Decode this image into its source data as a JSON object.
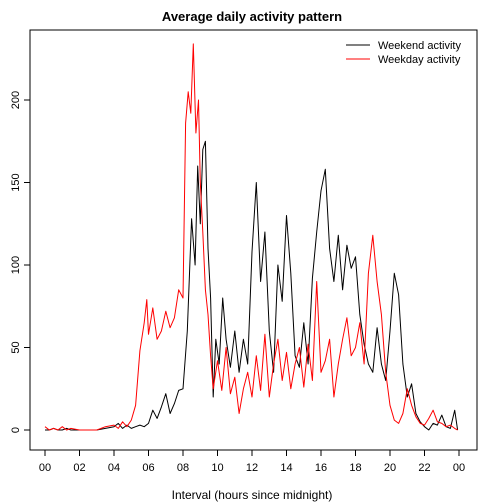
{
  "chart_data": {
    "type": "line",
    "title": "Average daily activity pattern",
    "xlabel": "Interval (hours since midnight)",
    "ylabel": "",
    "x_ticks": [
      "00",
      "02",
      "04",
      "06",
      "08",
      "10",
      "12",
      "14",
      "16",
      "18",
      "20",
      "22",
      "00"
    ],
    "y_ticks": [
      "0",
      "50",
      "100",
      "150",
      "200"
    ],
    "xlim": [
      0,
      24
    ],
    "ylim": [
      0,
      235
    ],
    "grid": false,
    "legend_position": "top-right",
    "series": [
      {
        "name": "Weekend activity",
        "color": "#000000",
        "points": [
          [
            0.0,
            0
          ],
          [
            0.25,
            0
          ],
          [
            0.5,
            1
          ],
          [
            0.75,
            0
          ],
          [
            1.0,
            0
          ],
          [
            1.25,
            1
          ],
          [
            1.5,
            0
          ],
          [
            2.0,
            0
          ],
          [
            2.5,
            0
          ],
          [
            3.0,
            0
          ],
          [
            3.5,
            1
          ],
          [
            4.0,
            2
          ],
          [
            4.25,
            4
          ],
          [
            4.5,
            1
          ],
          [
            4.75,
            3
          ],
          [
            5.0,
            1
          ],
          [
            5.25,
            2
          ],
          [
            5.5,
            3
          ],
          [
            5.75,
            2
          ],
          [
            6.0,
            4
          ],
          [
            6.25,
            12
          ],
          [
            6.5,
            7
          ],
          [
            6.75,
            14
          ],
          [
            7.0,
            22
          ],
          [
            7.25,
            10
          ],
          [
            7.5,
            16
          ],
          [
            7.75,
            24
          ],
          [
            8.0,
            25
          ],
          [
            8.25,
            60
          ],
          [
            8.5,
            128
          ],
          [
            8.7,
            100
          ],
          [
            8.85,
            160
          ],
          [
            9.0,
            125
          ],
          [
            9.15,
            170
          ],
          [
            9.3,
            175
          ],
          [
            9.45,
            110
          ],
          [
            9.6,
            80
          ],
          [
            9.75,
            20
          ],
          [
            9.9,
            55
          ],
          [
            10.1,
            40
          ],
          [
            10.3,
            80
          ],
          [
            10.5,
            55
          ],
          [
            10.75,
            38
          ],
          [
            11.0,
            60
          ],
          [
            11.25,
            35
          ],
          [
            11.5,
            55
          ],
          [
            11.75,
            40
          ],
          [
            12.0,
            108
          ],
          [
            12.25,
            150
          ],
          [
            12.5,
            90
          ],
          [
            12.75,
            120
          ],
          [
            13.0,
            60
          ],
          [
            13.25,
            35
          ],
          [
            13.5,
            100
          ],
          [
            13.75,
            78
          ],
          [
            14.0,
            130
          ],
          [
            14.25,
            95
          ],
          [
            14.5,
            45
          ],
          [
            14.75,
            38
          ],
          [
            15.0,
            65
          ],
          [
            15.25,
            40
          ],
          [
            15.5,
            92
          ],
          [
            15.75,
            120
          ],
          [
            16.0,
            145
          ],
          [
            16.25,
            158
          ],
          [
            16.5,
            110
          ],
          [
            16.75,
            90
          ],
          [
            17.0,
            118
          ],
          [
            17.25,
            85
          ],
          [
            17.5,
            112
          ],
          [
            17.75,
            98
          ],
          [
            18.0,
            105
          ],
          [
            18.25,
            70
          ],
          [
            18.5,
            52
          ],
          [
            18.75,
            40
          ],
          [
            19.0,
            35
          ],
          [
            19.25,
            62
          ],
          [
            19.5,
            40
          ],
          [
            19.75,
            30
          ],
          [
            20.0,
            60
          ],
          [
            20.25,
            95
          ],
          [
            20.5,
            82
          ],
          [
            20.75,
            40
          ],
          [
            21.0,
            20
          ],
          [
            21.25,
            28
          ],
          [
            21.5,
            10
          ],
          [
            21.75,
            5
          ],
          [
            22.0,
            2
          ],
          [
            22.25,
            0
          ],
          [
            22.5,
            4
          ],
          [
            22.75,
            3
          ],
          [
            23.0,
            9
          ],
          [
            23.25,
            2
          ],
          [
            23.5,
            1
          ],
          [
            23.75,
            12
          ],
          [
            23.92,
            0
          ]
        ]
      },
      {
        "name": "Weekday activity",
        "color": "#ff0000",
        "points": [
          [
            0.0,
            2
          ],
          [
            0.25,
            0
          ],
          [
            0.5,
            1
          ],
          [
            0.75,
            0
          ],
          [
            1.0,
            2
          ],
          [
            1.25,
            0
          ],
          [
            1.5,
            1
          ],
          [
            2.0,
            0
          ],
          [
            2.5,
            0
          ],
          [
            3.0,
            0
          ],
          [
            3.5,
            2
          ],
          [
            4.0,
            3
          ],
          [
            4.25,
            1
          ],
          [
            4.5,
            5
          ],
          [
            4.75,
            2
          ],
          [
            5.0,
            6
          ],
          [
            5.25,
            15
          ],
          [
            5.5,
            48
          ],
          [
            5.75,
            65
          ],
          [
            5.9,
            79
          ],
          [
            6.0,
            58
          ],
          [
            6.25,
            74
          ],
          [
            6.5,
            55
          ],
          [
            6.75,
            60
          ],
          [
            7.0,
            72
          ],
          [
            7.25,
            62
          ],
          [
            7.5,
            68
          ],
          [
            7.75,
            85
          ],
          [
            8.0,
            80
          ],
          [
            8.15,
            186
          ],
          [
            8.3,
            205
          ],
          [
            8.45,
            192
          ],
          [
            8.6,
            234
          ],
          [
            8.75,
            180
          ],
          [
            8.9,
            200
          ],
          [
            9.0,
            150
          ],
          [
            9.15,
            120
          ],
          [
            9.3,
            85
          ],
          [
            9.45,
            70
          ],
          [
            9.6,
            45
          ],
          [
            9.75,
            25
          ],
          [
            10.0,
            42
          ],
          [
            10.25,
            24
          ],
          [
            10.5,
            50
          ],
          [
            10.75,
            22
          ],
          [
            11.0,
            32
          ],
          [
            11.25,
            10
          ],
          [
            11.5,
            25
          ],
          [
            11.75,
            35
          ],
          [
            12.0,
            20
          ],
          [
            12.25,
            45
          ],
          [
            12.5,
            24
          ],
          [
            12.75,
            58
          ],
          [
            13.0,
            20
          ],
          [
            13.25,
            40
          ],
          [
            13.5,
            55
          ],
          [
            13.75,
            30
          ],
          [
            14.0,
            47
          ],
          [
            14.25,
            25
          ],
          [
            14.5,
            40
          ],
          [
            14.75,
            50
          ],
          [
            15.0,
            26
          ],
          [
            15.25,
            52
          ],
          [
            15.5,
            30
          ],
          [
            15.75,
            90
          ],
          [
            16.0,
            35
          ],
          [
            16.25,
            42
          ],
          [
            16.5,
            55
          ],
          [
            16.75,
            20
          ],
          [
            17.0,
            40
          ],
          [
            17.25,
            55
          ],
          [
            17.5,
            68
          ],
          [
            17.75,
            45
          ],
          [
            18.0,
            50
          ],
          [
            18.25,
            65
          ],
          [
            18.5,
            40
          ],
          [
            18.75,
            95
          ],
          [
            19.0,
            118
          ],
          [
            19.25,
            90
          ],
          [
            19.5,
            70
          ],
          [
            19.75,
            35
          ],
          [
            20.0,
            15
          ],
          [
            20.25,
            6
          ],
          [
            20.5,
            4
          ],
          [
            20.75,
            10
          ],
          [
            21.0,
            25
          ],
          [
            21.25,
            15
          ],
          [
            21.5,
            8
          ],
          [
            21.75,
            4
          ],
          [
            22.0,
            3
          ],
          [
            22.25,
            7
          ],
          [
            22.5,
            12
          ],
          [
            22.75,
            5
          ],
          [
            23.0,
            4
          ],
          [
            23.25,
            2
          ],
          [
            23.5,
            3
          ],
          [
            23.75,
            1
          ],
          [
            23.92,
            0
          ]
        ]
      }
    ]
  }
}
